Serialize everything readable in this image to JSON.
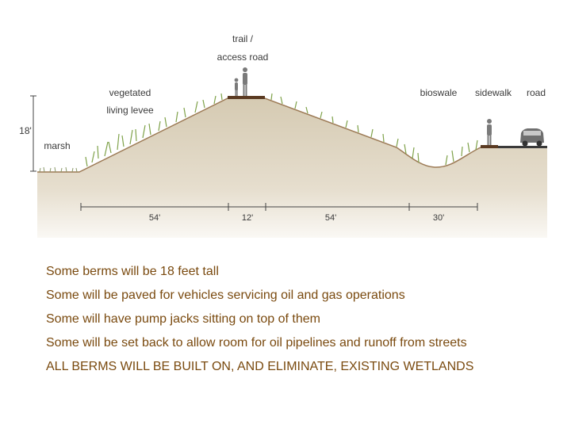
{
  "diagram": {
    "labels": {
      "trail_line1": "trail /",
      "trail_line2": "access road",
      "levee_line1": "vegetated",
      "levee_line2": "living levee",
      "marsh": "marsh",
      "height": "18'",
      "bioswale": "bioswale",
      "sidewalk": "sidewalk",
      "road": "road"
    },
    "dimensions": [
      "54'",
      "12'",
      "54'",
      "30'"
    ]
  },
  "caption": {
    "lines": [
      "Some berms will be 18 feet tall",
      "Some will be paved for vehicles servicing oil and gas operations",
      "Some will have pump jacks sitting on top of them",
      "Some will be set back to allow room for oil pipelines and runoff from streets",
      "ALL BERMS WILL BE BUILT ON, AND ELIMINATE, EXISTING WETLANDS"
    ]
  },
  "colors": {
    "soil": "#d8cdb7",
    "soil_edge": "#9c7a55",
    "vegetation": "#8fb35a",
    "caption_text": "#7a4a0f"
  }
}
